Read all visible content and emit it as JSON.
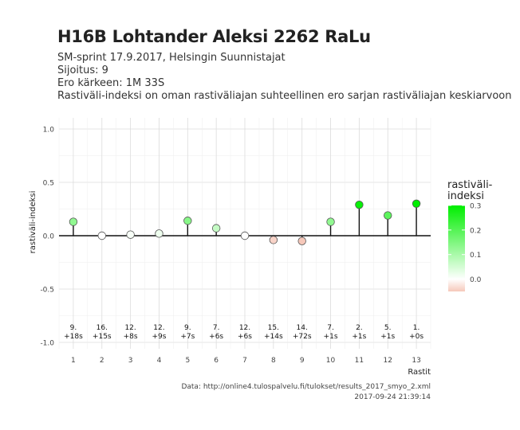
{
  "header": {
    "title": "H16B Lohtander Aleksi 2262 RaLu",
    "line1": "SM-sprint 17.9.2017, Helsingin Suunnistajat",
    "line2": "Sijoitus: 9",
    "line3": "Ero kärkeen: 1M 33S",
    "line4": "Rastiväli-indeksi on oman rastiväliajan suhteellinen ero sarjan rastiväliajan keskiarvoon"
  },
  "footer": {
    "source": "Data: http://online4.tulospalvelu.fi/tulokset/results_2017_smyo_2.xml",
    "timestamp": "2017-09-24 21:39:14"
  },
  "legend": {
    "title_line1": "rastiväli-",
    "title_line2": "indeksi",
    "ticks": [
      0.3,
      0.2,
      0.1,
      0.0
    ],
    "range": [
      -0.05,
      0.3
    ],
    "color_high": "#00ee00",
    "color_zero": "#ffffff",
    "color_low": "#f6c8ba"
  },
  "chart_data": {
    "type": "lollipop",
    "xlabel": "Rastit",
    "ylabel": "rastiväli-indeksi",
    "ylim": [
      -1.0,
      1.0
    ],
    "yticks": [
      1.0,
      0.5,
      0.0,
      -0.5,
      -1.0
    ],
    "ytick_labels": [
      "1.0",
      "0.5",
      "0.0",
      "-0.5",
      "-1.0"
    ],
    "x": [
      1,
      2,
      3,
      4,
      5,
      6,
      7,
      8,
      9,
      10,
      11,
      12,
      13
    ],
    "values": [
      0.13,
      0.0,
      0.01,
      0.02,
      0.14,
      0.07,
      0.0,
      -0.04,
      -0.05,
      0.13,
      0.29,
      0.19,
      0.3
    ],
    "rank_labels": [
      "9.",
      "16.",
      "12.",
      "12.",
      "9.",
      "7.",
      "12.",
      "15.",
      "14.",
      "7.",
      "2.",
      "5.",
      "1."
    ],
    "diff_labels": [
      "+18s",
      "+15s",
      "+8s",
      "+9s",
      "+7s",
      "+6s",
      "+6s",
      "+14s",
      "+72s",
      "+1s",
      "+1s",
      "+1s",
      "+0s"
    ],
    "grid": true,
    "legend_position": "right"
  }
}
